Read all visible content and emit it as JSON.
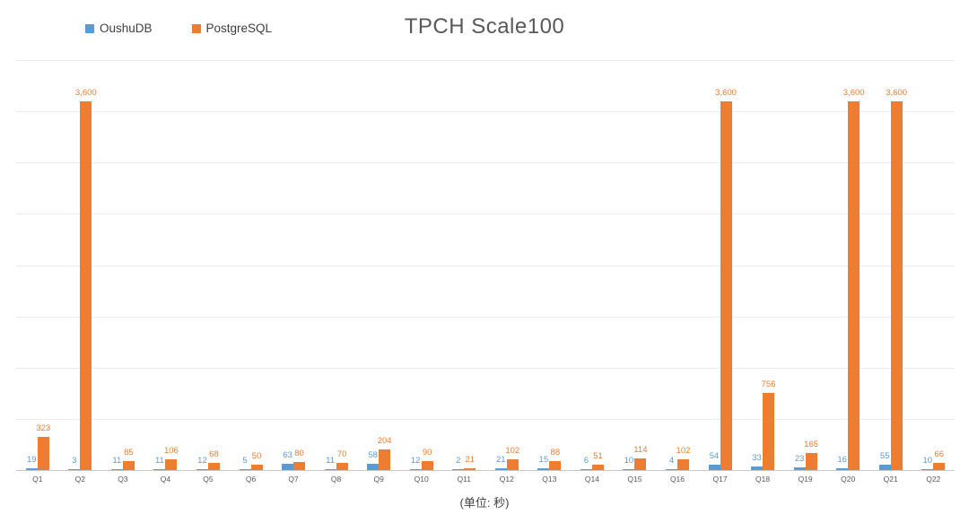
{
  "title": "TPCH Scale100",
  "unit_note": "(单位: 秒)",
  "colors": {
    "oushudb_blue": "#5B9BD5",
    "postgresql_orange": "#ED7D31",
    "gridline": "#EBEBEB",
    "axis_line": "#C9C9C9",
    "title_text": "#595959",
    "tick_text": "#595959"
  },
  "legend": {
    "position": "top-left",
    "items": [
      {
        "label": "OushuDB",
        "color": "#5B9BD5"
      },
      {
        "label": "PostgreSQL",
        "color": "#ED7D31"
      }
    ]
  },
  "chart_data": {
    "type": "bar",
    "title": "TPCH Scale100",
    "unit_note": "(单位: 秒)",
    "xlabel": "",
    "ylabel": "",
    "ylim": [
      0,
      4000
    ],
    "gridline_step": 500,
    "grid": true,
    "y_axis_tick_labels_visible": false,
    "legend_position": "top-left",
    "categories": [
      "Q1",
      "Q2",
      "Q3",
      "Q4",
      "Q5",
      "Q6",
      "Q7",
      "Q8",
      "Q9",
      "Q10",
      "Q11",
      "Q12",
      "Q13",
      "Q14",
      "Q15",
      "Q16",
      "Q17",
      "Q18",
      "Q19",
      "Q20",
      "Q21",
      "Q22"
    ],
    "series": [
      {
        "name": "OushuDB",
        "color": "#5B9BD5",
        "values": [
          19,
          3,
          11,
          11,
          12,
          5,
          63,
          11,
          58,
          12,
          2,
          21,
          15,
          6,
          10,
          4,
          54,
          33,
          23,
          16,
          55,
          10
        ],
        "labels": [
          "19",
          "3",
          "11",
          "11",
          "12",
          "5",
          "63",
          "11",
          "58",
          "12",
          "2",
          "21",
          "15",
          "6",
          "10",
          "4",
          "54",
          "33",
          "23",
          "16",
          "55",
          "10"
        ]
      },
      {
        "name": "PostgreSQL",
        "color": "#ED7D31",
        "values": [
          323,
          3600,
          85,
          106,
          68,
          50,
          80,
          70,
          204,
          90,
          21,
          102,
          88,
          51,
          114,
          102,
          3600,
          756,
          165,
          3600,
          3600,
          66
        ],
        "labels": [
          "323",
          "3,600",
          "85",
          "106",
          "68",
          "50",
          "80",
          "70",
          "204",
          "90",
          "21",
          "102",
          "88",
          "51",
          "114",
          "102",
          "3,600",
          "756",
          "165",
          "3,600",
          "3,600",
          "66"
        ]
      }
    ]
  }
}
